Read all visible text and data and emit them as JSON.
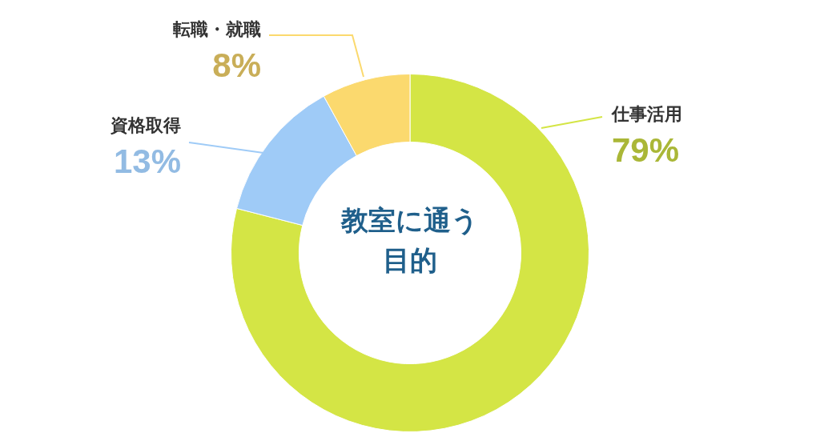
{
  "chart_data": {
    "type": "donut",
    "title": "教室に通う目的",
    "categories": [
      "仕事活用",
      "資格取得",
      "転職・就職"
    ],
    "values": [
      79,
      13,
      8
    ],
    "colors": [
      "#d4e545",
      "#9fcbf7",
      "#fbd96e"
    ],
    "value_labels": [
      "79%",
      "13%",
      "8%"
    ],
    "legend": false
  }
}
